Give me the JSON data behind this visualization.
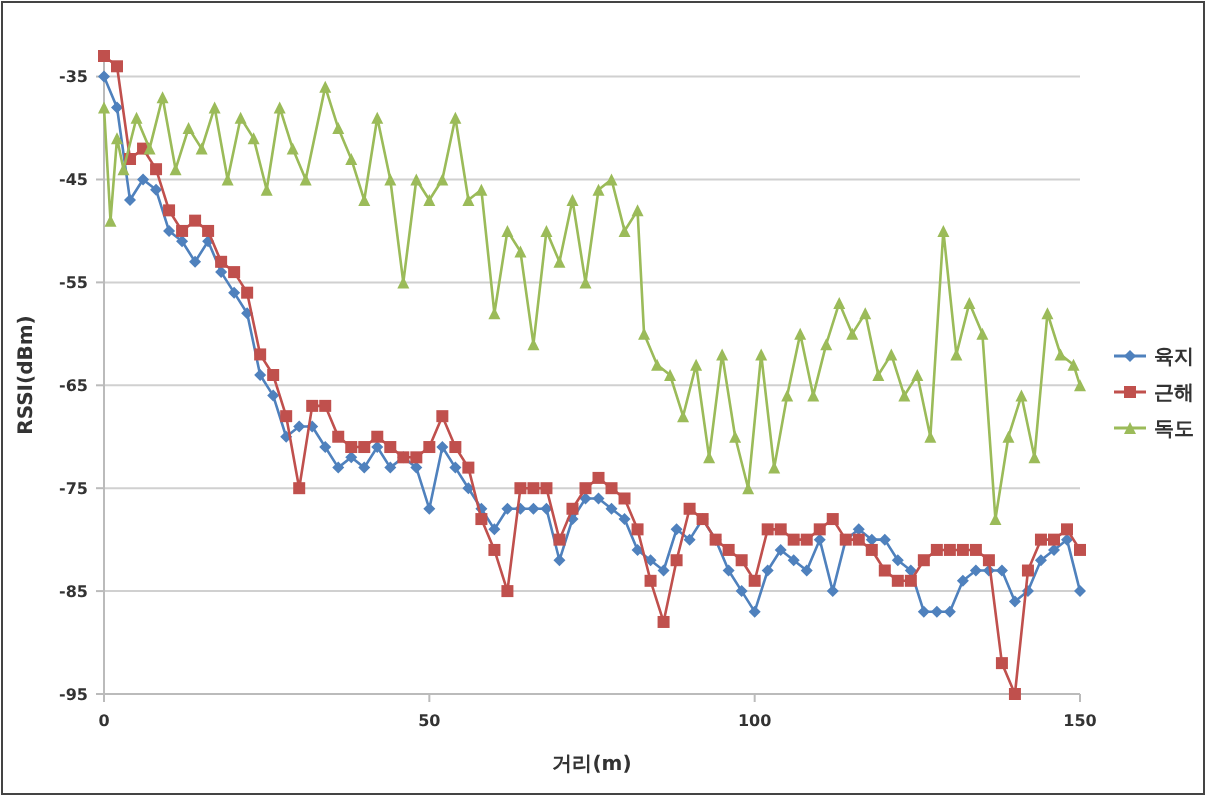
{
  "chart_data": {
    "type": "line",
    "xlabel": "거리(m)",
    "ylabel": "RSSI(dBm)",
    "xlim": [
      0,
      150
    ],
    "xticks": [
      0,
      50,
      100,
      150
    ],
    "ylim": [
      -95,
      -33
    ],
    "yticks": [
      -95,
      -85,
      -75,
      -65,
      -55,
      -45,
      -35
    ],
    "grid": "y",
    "legend": "right",
    "series": [
      {
        "name": "육지",
        "color": "#4f81bd",
        "marker": "diamond",
        "x": [
          0,
          2,
          4,
          6,
          8,
          10,
          12,
          14,
          16,
          18,
          20,
          22,
          24,
          26,
          28,
          30,
          32,
          34,
          36,
          38,
          40,
          42,
          44,
          46,
          48,
          50,
          52,
          54,
          56,
          58,
          60,
          62,
          64,
          66,
          68,
          70,
          72,
          74,
          76,
          78,
          80,
          82,
          84,
          86,
          88,
          90,
          92,
          94,
          96,
          98,
          100,
          102,
          104,
          106,
          108,
          110,
          112,
          114,
          116,
          118,
          120,
          122,
          124,
          126,
          128,
          130,
          132,
          134,
          136,
          138,
          140,
          142,
          144,
          146,
          148,
          150
        ],
        "values": [
          -35,
          -38,
          -47,
          -45,
          -46,
          -50,
          -51,
          -53,
          -51,
          -54,
          -56,
          -58,
          -64,
          -66,
          -70,
          -69,
          -69,
          -71,
          -73,
          -72,
          -73,
          -71,
          -73,
          -72,
          -73,
          -77,
          -71,
          -73,
          -75,
          -77,
          -79,
          -77,
          -77,
          -77,
          -77,
          -82,
          -78,
          -76,
          -76,
          -77,
          -78,
          -81,
          -82,
          -83,
          -79,
          -80,
          -78,
          -80,
          -83,
          -85,
          -87,
          -83,
          -81,
          -82,
          -83,
          -80,
          -85,
          -80,
          -79,
          -80,
          -80,
          -82,
          -83,
          -87,
          -87,
          -87,
          -84,
          -83,
          -83,
          -83,
          -86,
          -85,
          -82,
          -81,
          -80,
          -85
        ]
      },
      {
        "name": "근해",
        "color": "#c0504d",
        "marker": "square",
        "x": [
          0,
          2,
          4,
          6,
          8,
          10,
          12,
          14,
          16,
          18,
          20,
          22,
          24,
          26,
          28,
          30,
          32,
          34,
          36,
          38,
          40,
          42,
          44,
          46,
          48,
          50,
          52,
          54,
          56,
          58,
          60,
          62,
          64,
          66,
          68,
          70,
          72,
          74,
          76,
          78,
          80,
          82,
          84,
          86,
          88,
          90,
          92,
          94,
          96,
          98,
          100,
          102,
          104,
          106,
          108,
          110,
          112,
          114,
          116,
          118,
          120,
          122,
          124,
          126,
          128,
          130,
          132,
          134,
          136,
          138,
          140,
          142,
          144,
          146,
          148,
          150
        ],
        "values": [
          -33,
          -34,
          -43,
          -42,
          -44,
          -48,
          -50,
          -49,
          -50,
          -53,
          -54,
          -56,
          -62,
          -64,
          -68,
          -75,
          -67,
          -67,
          -70,
          -71,
          -71,
          -70,
          -71,
          -72,
          -72,
          -71,
          -68,
          -71,
          -73,
          -78,
          -81,
          -85,
          -75,
          -75,
          -75,
          -80,
          -77,
          -75,
          -74,
          -75,
          -76,
          -79,
          -84,
          -88,
          -82,
          -77,
          -78,
          -80,
          -81,
          -82,
          -84,
          -79,
          -79,
          -80,
          -80,
          -79,
          -78,
          -80,
          -80,
          -81,
          -83,
          -84,
          -84,
          -82,
          -81,
          -81,
          -81,
          -81,
          -82,
          -92,
          -95,
          -83,
          -80,
          -80,
          -79,
          -81
        ]
      },
      {
        "name": "독도",
        "color": "#9bbb59",
        "marker": "triangle",
        "x": [
          0,
          1,
          2,
          3,
          5,
          7,
          9,
          11,
          13,
          15,
          17,
          19,
          21,
          23,
          25,
          27,
          29,
          31,
          34,
          36,
          38,
          40,
          42,
          44,
          46,
          48,
          50,
          52,
          54,
          56,
          58,
          60,
          62,
          64,
          66,
          68,
          70,
          72,
          74,
          76,
          78,
          80,
          82,
          83,
          85,
          87,
          89,
          91,
          93,
          95,
          97,
          99,
          101,
          103,
          105,
          107,
          109,
          111,
          113,
          115,
          117,
          119,
          121,
          123,
          125,
          127,
          129,
          131,
          133,
          135,
          137,
          139,
          141,
          143,
          145,
          147,
          149,
          150
        ],
        "values": [
          -38,
          -49,
          -41,
          -44,
          -39,
          -42,
          -37,
          -44,
          -40,
          -42,
          -38,
          -45,
          -39,
          -41,
          -46,
          -38,
          -42,
          -45,
          -36,
          -40,
          -43,
          -47,
          -39,
          -45,
          -55,
          -45,
          -47,
          -45,
          -39,
          -47,
          -46,
          -58,
          -50,
          -52,
          -61,
          -50,
          -53,
          -47,
          -55,
          -46,
          -45,
          -50,
          -48,
          -60,
          -63,
          -64,
          -68,
          -63,
          -72,
          -62,
          -70,
          -75,
          -62,
          -73,
          -66,
          -60,
          -66,
          -61,
          -57,
          -60,
          -58,
          -64,
          -62,
          -66,
          -64,
          -70,
          -50,
          -62,
          -57,
          -60,
          -78,
          -70,
          -66,
          -72,
          -58,
          -62,
          -63,
          -65
        ]
      }
    ]
  }
}
